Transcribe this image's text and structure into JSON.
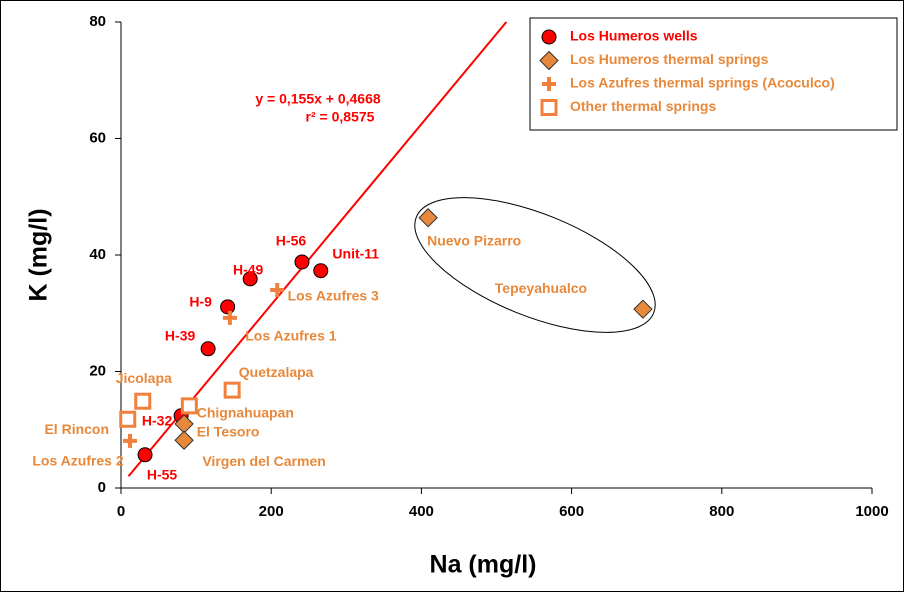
{
  "chart_data": {
    "type": "scatter",
    "x_label": "Na (mg/l)",
    "y_label": "K (mg/l)",
    "xlim": [
      0,
      1000
    ],
    "ylim": [
      0,
      80
    ],
    "xticks": [
      0,
      200,
      400,
      600,
      800,
      1000
    ],
    "yticks": [
      0,
      20,
      40,
      60,
      80
    ],
    "legend": "upper right",
    "series": [
      {
        "name": "Los Humeros wells",
        "color": "#ff0000",
        "marker": "circle",
        "x": [
          32,
          80,
          116,
          142,
          172,
          241,
          266
        ],
        "values": [
          5.7,
          12.4,
          23.9,
          31.1,
          35.9,
          38.8,
          37.3
        ],
        "labels": [
          "H-55",
          "H-32",
          "H-39",
          "H-9",
          "H-49",
          "H-56",
          "Unit-11"
        ]
      },
      {
        "name": "Los Humeros thermal springs",
        "color": "#e8883a",
        "marker": "diamond",
        "x": [
          409,
          695,
          84,
          84
        ],
        "values": [
          46.4,
          30.7,
          11.0,
          8.2
        ],
        "labels": [
          "Nuevo Pizarro",
          "Tepeyahualco",
          "El Tesoro",
          "Virgen del Carmen"
        ]
      },
      {
        "name": "Los Azufres thermal springs (Acoculco)",
        "color": "#f0803c",
        "marker": "plus",
        "x": [
          208,
          145,
          12
        ],
        "values": [
          34.0,
          29.2,
          8.1
        ],
        "labels": [
          "Los Azufres 3",
          "Los Azufres 1",
          "Los Azufres 2"
        ]
      },
      {
        "name": "Other thermal springs",
        "color": "#f0803c",
        "marker": "square",
        "x": [
          29,
          9,
          91,
          148
        ],
        "values": [
          14.9,
          11.8,
          14.1,
          16.8
        ],
        "labels": [
          "Jicolapa",
          "El Rincon",
          "Chignahuapan",
          "Quetzalapa"
        ]
      }
    ],
    "fit": {
      "slope": 0.155,
      "intercept": 0.4668,
      "x_start": 10,
      "color": "#ff0000",
      "equation": "y = 0,155x + 0,4668",
      "r2": "r² = 0,8575"
    }
  }
}
